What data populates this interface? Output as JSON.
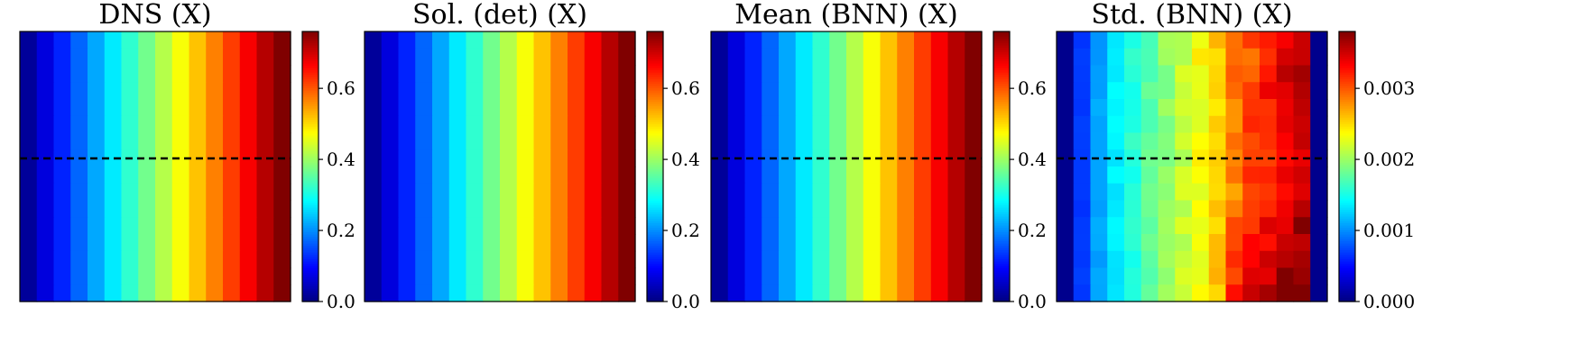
{
  "chart_data": [
    {
      "type": "heatmap",
      "title": "DNS (X)",
      "pattern": "gradient",
      "colormap": "jet",
      "grid_shape": [
        16,
        16
      ],
      "colorbar": {
        "range": [
          0.0,
          0.76
        ],
        "ticks": [
          0.0,
          0.2,
          0.4,
          0.6
        ],
        "tick_labels": [
          "0.0",
          "0.2",
          "0.4",
          "0.6"
        ]
      },
      "column_values": [
        0.02,
        0.07,
        0.12,
        0.17,
        0.22,
        0.27,
        0.32,
        0.37,
        0.42,
        0.47,
        0.52,
        0.57,
        0.62,
        0.67,
        0.72,
        0.76
      ],
      "dashed_line_row_fraction": 0.47
    },
    {
      "type": "heatmap",
      "title": "Sol. (det) (X)",
      "pattern": "gradient",
      "colormap": "jet",
      "grid_shape": [
        16,
        16
      ],
      "colorbar": {
        "range": [
          0.0,
          0.76
        ],
        "ticks": [
          0.0,
          0.2,
          0.4,
          0.6
        ],
        "tick_labels": [
          "0.0",
          "0.2",
          "0.4",
          "0.6"
        ]
      },
      "column_values": [
        0.02,
        0.07,
        0.12,
        0.17,
        0.22,
        0.27,
        0.32,
        0.37,
        0.42,
        0.47,
        0.52,
        0.57,
        0.62,
        0.67,
        0.72,
        0.76
      ]
    },
    {
      "type": "heatmap",
      "title": "Mean (BNN) (X)",
      "pattern": "gradient",
      "colormap": "jet",
      "grid_shape": [
        16,
        16
      ],
      "colorbar": {
        "range": [
          0.0,
          0.76
        ],
        "ticks": [
          0.0,
          0.2,
          0.4,
          0.6
        ],
        "tick_labels": [
          "0.0",
          "0.2",
          "0.4",
          "0.6"
        ]
      },
      "column_values": [
        0.02,
        0.07,
        0.12,
        0.17,
        0.22,
        0.27,
        0.32,
        0.37,
        0.42,
        0.47,
        0.52,
        0.57,
        0.62,
        0.67,
        0.72,
        0.76
      ],
      "dashed_line_row_fraction": 0.47
    },
    {
      "type": "heatmap",
      "title": "Std. (BNN) (X)",
      "pattern": "std",
      "colormap": "jet",
      "grid_shape": [
        16,
        16
      ],
      "colorbar": {
        "range": [
          0.0,
          0.0038
        ],
        "ticks": [
          0.0,
          0.001,
          0.002,
          0.003
        ],
        "tick_labels": [
          "0.000",
          "0.001",
          "0.002",
          "0.003"
        ]
      },
      "column_values": [
        5e-05,
        0.0007,
        0.0011,
        0.0014,
        0.0016,
        0.0018,
        0.002,
        0.0022,
        0.0024,
        0.0026,
        0.0029,
        0.0031,
        0.0033,
        0.0035,
        0.0036,
        5e-05
      ],
      "dashed_line_row_fraction": 0.47
    }
  ]
}
